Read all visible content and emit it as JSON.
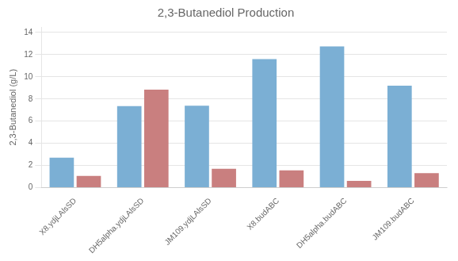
{
  "chart_data": {
    "type": "bar",
    "title": "2,3-Butanediol Production",
    "ylabel": "2,3-Butanediol (g/L)",
    "categories": [
      "X8.ydjLAlsSD",
      "DH5alpha.ydjLAlsSD",
      "JM109.ydjLAlsSD",
      "X8.budABC",
      "DH5alpha.budABC",
      "JM109.budABC"
    ],
    "series": [
      {
        "color": "#7bafd4",
        "values": [
          2.7,
          7.35,
          7.4,
          11.6,
          12.75,
          9.2
        ]
      },
      {
        "color": "#c97f7f",
        "values": [
          1.05,
          8.85,
          1.7,
          1.55,
          0.6,
          1.3
        ]
      }
    ],
    "ylim": [
      0,
      14.5
    ],
    "yticks": [
      0,
      2,
      4,
      6,
      8,
      10,
      12,
      14
    ],
    "grid": true
  }
}
